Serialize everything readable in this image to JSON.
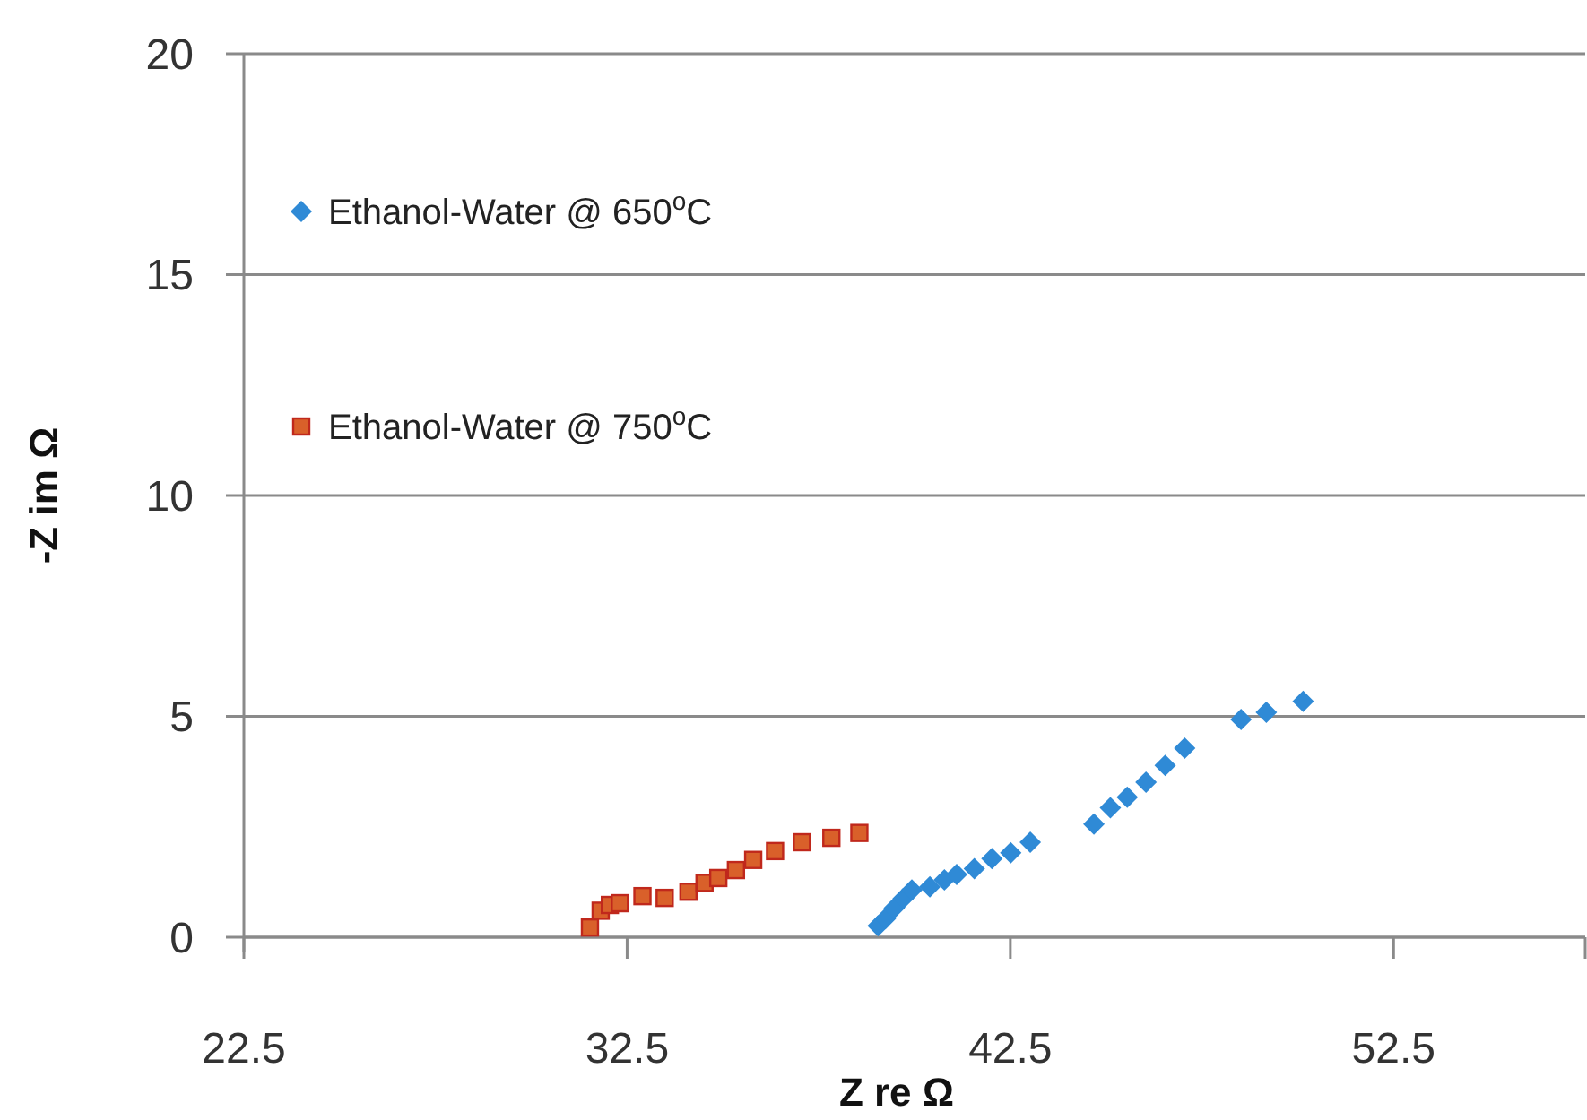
{
  "chart_data": {
    "type": "scatter",
    "xlabel": "Z re Ω",
    "ylabel": "-Z im Ω",
    "xlim": [
      22.5,
      57.5
    ],
    "xticks": [
      22.5,
      32.5,
      42.5,
      52.5,
      {
        "value": 57.5,
        "label": null
      }
    ],
    "ylim": [
      0,
      20
    ],
    "yticks": [
      0,
      5,
      10,
      15,
      20
    ],
    "grid": "y",
    "legend": "top left",
    "series": [
      {
        "name": "Ethanol-Water @ 650$^{o}$C",
        "color": "#2f8ad6",
        "marker": "diamond",
        "x": [
          39.05,
          39.24,
          39.47,
          39.7,
          39.93,
          40.4,
          40.78,
          41.1,
          41.56,
          42.02,
          42.51,
          43.02,
          44.68,
          45.11,
          45.55,
          46.04,
          46.54,
          47.05,
          48.52,
          49.18,
          50.14
        ],
        "values": [
          0.26,
          0.42,
          0.66,
          0.87,
          1.07,
          1.14,
          1.3,
          1.42,
          1.55,
          1.78,
          1.91,
          2.15,
          2.56,
          2.93,
          3.17,
          3.51,
          3.89,
          4.28,
          4.93,
          5.09,
          5.34
        ]
      },
      {
        "name": "Ethanol-Water @ 750$^{o}$C",
        "color": "#d9602a",
        "marker": "square",
        "x": [
          31.53,
          31.81,
          32.05,
          32.31,
          32.9,
          33.48,
          34.1,
          34.52,
          34.88,
          35.34,
          35.79,
          36.36,
          37.06,
          37.83,
          38.56
        ],
        "values": [
          0.22,
          0.6,
          0.73,
          0.77,
          0.93,
          0.89,
          1.03,
          1.23,
          1.34,
          1.52,
          1.75,
          1.95,
          2.15,
          2.25,
          2.36
        ]
      }
    ]
  }
}
